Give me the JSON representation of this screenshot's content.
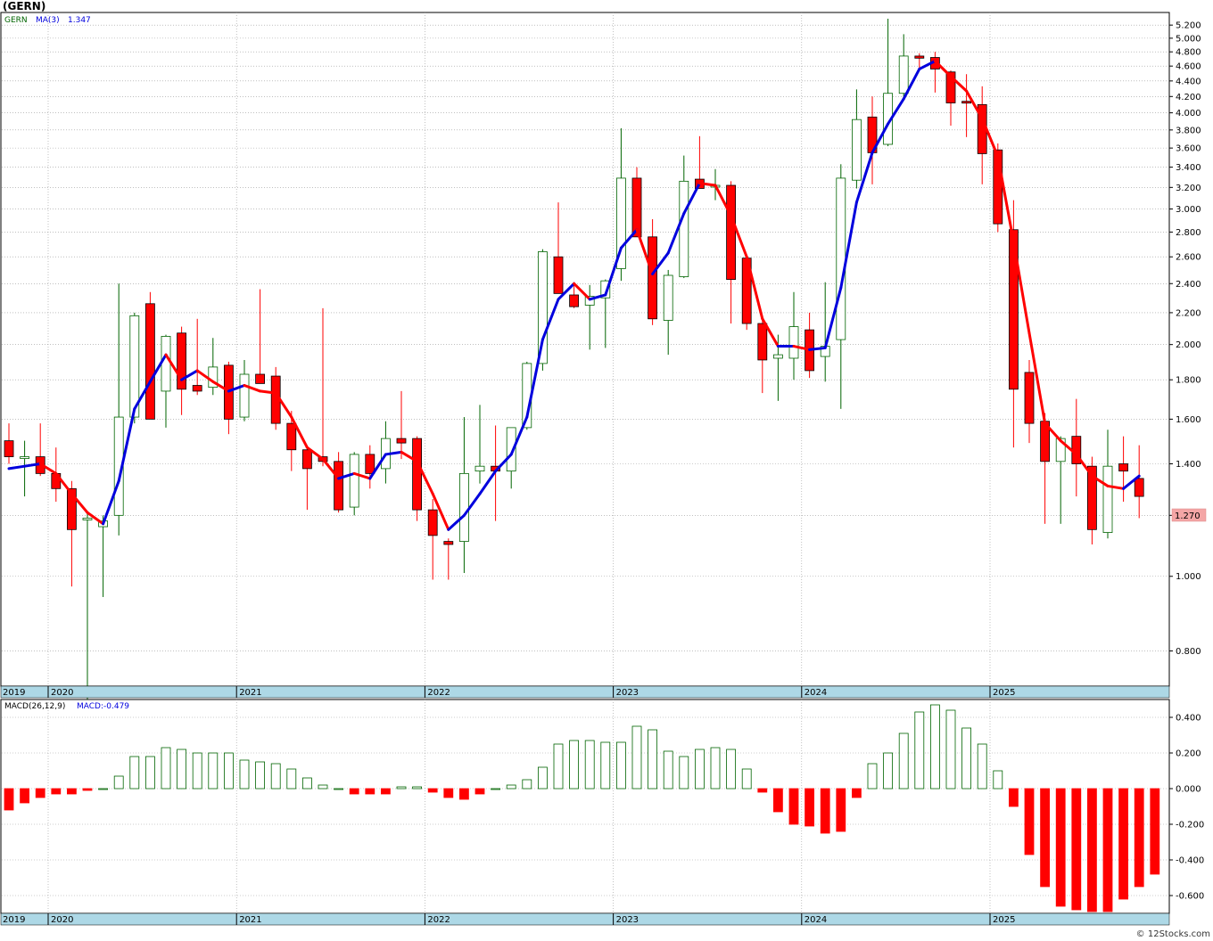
{
  "title": "(GERN)",
  "credit": "© 12Stocks.com",
  "price_panel": {
    "legend_symbol": "GERN",
    "legend_ma_label": "MA(3)",
    "legend_ma_value": "1.347",
    "last_price_label": "1.270",
    "y_ticks": [
      "0.800",
      "1.000",
      "1.200",
      "1.400",
      "1.600",
      "1.800",
      "2.000",
      "2.200",
      "2.400",
      "2.600",
      "2.800",
      "3.000",
      "3.200",
      "3.400",
      "3.600",
      "3.800",
      "4.000",
      "4.200",
      "4.400",
      "4.600",
      "4.800",
      "5.000",
      "5.200"
    ]
  },
  "macd_panel": {
    "legend_label": "MACD(26,12,9)",
    "legend_value_label": "MACD:-0.479",
    "y_ticks": [
      "-0.600",
      "-0.400",
      "-0.200",
      "0.000",
      "0.200",
      "0.400"
    ]
  },
  "year_labels": [
    "2019",
    "2020",
    "2021",
    "2022",
    "2023",
    "2024",
    "2025"
  ],
  "colors": {
    "up": "#006400",
    "down": "#ff0000",
    "ma_up": "#0000dd",
    "ma_down": "#ff0000",
    "axis_band": "#add8e6",
    "grid": "#999999",
    "last_price_bg": "#f4a6a6"
  },
  "chart_data": [
    {
      "type": "candlestick",
      "scale": "log",
      "ylim": [
        0.72,
        5.4
      ],
      "x_year_positions": [
        0,
        3,
        15,
        27,
        39,
        51,
        63
      ],
      "ohlc": [
        [
          1.5,
          1.58,
          1.4,
          1.43
        ],
        [
          1.43,
          1.5,
          1.27,
          1.43
        ],
        [
          1.43,
          1.58,
          1.35,
          1.36
        ],
        [
          1.36,
          1.47,
          1.25,
          1.3
        ],
        [
          1.3,
          1.33,
          0.97,
          1.15
        ],
        [
          1.19,
          1.21,
          0.68,
          1.19
        ],
        [
          1.16,
          1.2,
          0.94,
          1.18
        ],
        [
          1.2,
          2.4,
          1.13,
          1.61
        ],
        [
          1.61,
          2.2,
          1.58,
          2.18
        ],
        [
          2.26,
          2.34,
          1.6,
          1.6
        ],
        [
          1.74,
          2.06,
          1.56,
          2.05
        ],
        [
          2.07,
          2.11,
          1.62,
          1.75
        ],
        [
          1.77,
          2.16,
          1.72,
          1.74
        ],
        [
          1.76,
          2.04,
          1.72,
          1.87
        ],
        [
          1.88,
          1.9,
          1.53,
          1.6
        ],
        [
          1.61,
          1.91,
          1.59,
          1.83
        ],
        [
          1.83,
          2.36,
          1.78,
          1.78
        ],
        [
          1.82,
          1.87,
          1.55,
          1.58
        ],
        [
          1.58,
          1.64,
          1.37,
          1.46
        ],
        [
          1.46,
          1.48,
          1.22,
          1.38
        ],
        [
          1.43,
          2.23,
          1.39,
          1.41
        ],
        [
          1.41,
          1.45,
          1.21,
          1.22
        ],
        [
          1.23,
          1.45,
          1.2,
          1.44
        ],
        [
          1.44,
          1.48,
          1.3,
          1.36
        ],
        [
          1.38,
          1.59,
          1.32,
          1.51
        ],
        [
          1.51,
          1.74,
          1.42,
          1.49
        ],
        [
          1.51,
          1.52,
          1.18,
          1.22
        ],
        [
          1.22,
          1.26,
          0.99,
          1.13
        ],
        [
          1.11,
          1.12,
          0.99,
          1.1
        ],
        [
          1.11,
          1.61,
          1.01,
          1.36
        ],
        [
          1.37,
          1.67,
          1.32,
          1.39
        ],
        [
          1.39,
          1.57,
          1.18,
          1.37
        ],
        [
          1.37,
          1.55,
          1.3,
          1.56
        ],
        [
          1.56,
          1.9,
          1.55,
          1.89
        ],
        [
          1.89,
          2.66,
          1.85,
          2.64
        ],
        [
          2.6,
          3.06,
          2.34,
          2.33
        ],
        [
          2.32,
          2.41,
          2.23,
          2.24
        ],
        [
          2.25,
          2.39,
          1.97,
          2.31
        ],
        [
          2.3,
          2.43,
          1.98,
          2.42
        ],
        [
          2.51,
          3.82,
          2.42,
          3.29
        ],
        [
          3.29,
          3.4,
          2.79,
          2.76
        ],
        [
          2.76,
          2.91,
          2.12,
          2.16
        ],
        [
          2.15,
          2.5,
          1.94,
          2.46
        ],
        [
          2.45,
          3.52,
          2.44,
          3.26
        ],
        [
          3.28,
          3.73,
          3.2,
          3.19
        ],
        [
          3.21,
          3.38,
          3.08,
          3.22
        ],
        [
          3.22,
          3.26,
          2.13,
          2.43
        ],
        [
          2.59,
          2.6,
          2.09,
          2.13
        ],
        [
          2.13,
          2.17,
          1.73,
          1.91
        ],
        [
          1.92,
          2.06,
          1.69,
          1.94
        ],
        [
          1.92,
          2.34,
          1.8,
          2.11
        ],
        [
          2.09,
          2.2,
          1.81,
          1.85
        ],
        [
          1.93,
          2.41,
          1.79,
          1.99
        ],
        [
          2.03,
          3.43,
          1.65,
          3.29
        ],
        [
          3.27,
          4.29,
          3.19,
          3.92
        ],
        [
          3.95,
          4.2,
          3.23,
          3.55
        ],
        [
          3.64,
          5.3,
          3.62,
          4.24
        ],
        [
          4.24,
          5.06,
          4.16,
          4.74
        ],
        [
          4.74,
          4.78,
          4.56,
          4.71
        ],
        [
          4.72,
          4.8,
          4.25,
          4.56
        ],
        [
          4.52,
          4.54,
          3.85,
          4.12
        ],
        [
          4.14,
          4.49,
          3.72,
          4.12
        ],
        [
          4.1,
          4.33,
          3.23,
          3.54
        ],
        [
          3.58,
          3.65,
          2.8,
          2.87
        ],
        [
          2.82,
          3.08,
          1.47,
          1.75
        ],
        [
          1.84,
          1.91,
          1.49,
          1.58
        ],
        [
          1.59,
          1.63,
          1.17,
          1.41
        ],
        [
          1.41,
          1.52,
          1.17,
          1.51
        ],
        [
          1.52,
          1.7,
          1.27,
          1.4
        ],
        [
          1.39,
          1.43,
          1.1,
          1.15
        ],
        [
          1.14,
          1.55,
          1.12,
          1.39
        ],
        [
          1.4,
          1.52,
          1.25,
          1.37
        ],
        [
          1.34,
          1.48,
          1.19,
          1.27
        ]
      ],
      "ma3": [
        1.38,
        1.39,
        1.4,
        1.36,
        1.28,
        1.21,
        1.17,
        1.33,
        1.65,
        1.79,
        1.94,
        1.8,
        1.85,
        1.79,
        1.74,
        1.77,
        1.74,
        1.73,
        1.61,
        1.47,
        1.42,
        1.34,
        1.36,
        1.34,
        1.44,
        1.45,
        1.41,
        1.28,
        1.15,
        1.2,
        1.28,
        1.37,
        1.44,
        1.61,
        2.03,
        2.29,
        2.4,
        2.29,
        2.32,
        2.67,
        2.82,
        2.47,
        2.63,
        2.96,
        3.24,
        3.22,
        2.94,
        2.6,
        2.16,
        1.99,
        1.99,
        1.97,
        1.98,
        2.37,
        3.06,
        3.55,
        3.87,
        4.17,
        4.56,
        4.67,
        4.46,
        4.27,
        3.93,
        3.51,
        2.72,
        2.07,
        1.58,
        1.5,
        1.44,
        1.35,
        1.31,
        1.3,
        1.35
      ]
    },
    {
      "type": "bar",
      "title": "MACD(26,12,9)",
      "ylim": [
        -0.7,
        0.5
      ],
      "values": [
        -0.12,
        -0.08,
        -0.05,
        -0.03,
        -0.03,
        -0.01,
        0.0,
        0.07,
        0.18,
        0.18,
        0.23,
        0.22,
        0.2,
        0.2,
        0.2,
        0.16,
        0.15,
        0.14,
        0.11,
        0.06,
        0.02,
        0.0,
        -0.03,
        -0.03,
        -0.03,
        0.01,
        0.01,
        -0.02,
        -0.05,
        -0.06,
        -0.03,
        0.0,
        0.02,
        0.05,
        0.12,
        0.25,
        0.27,
        0.27,
        0.26,
        0.26,
        0.35,
        0.33,
        0.21,
        0.18,
        0.22,
        0.23,
        0.22,
        0.11,
        -0.02,
        -0.13,
        -0.2,
        -0.21,
        -0.25,
        -0.24,
        -0.05,
        0.14,
        0.2,
        0.31,
        0.43,
        0.47,
        0.44,
        0.34,
        0.25,
        0.1,
        -0.1,
        -0.37,
        -0.55,
        -0.66,
        -0.68,
        -0.69,
        -0.69,
        -0.62,
        -0.55,
        -0.48
      ]
    }
  ]
}
